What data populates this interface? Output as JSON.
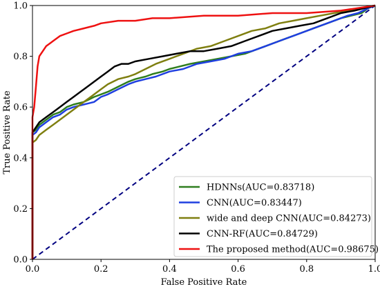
{
  "chart_data": {
    "type": "line",
    "title": "",
    "xlabel": "False Positive Rate",
    "ylabel": "True Positive Rate",
    "xlim": [
      0.0,
      1.0
    ],
    "ylim": [
      0.0,
      1.0
    ],
    "xticks": [
      "0.0",
      "0.2",
      "0.4",
      "0.6",
      "0.8",
      "1.0"
    ],
    "yticks": [
      "0.0",
      "0.2",
      "0.4",
      "0.6",
      "0.8",
      "1.0"
    ],
    "grid": false,
    "legend_position": "bottom-right",
    "diagonal": {
      "x": [
        0,
        1
      ],
      "y": [
        0,
        1
      ],
      "color": "#000080",
      "style": "dashed"
    },
    "series": [
      {
        "name": "HDNNs(AUC=0.83718)",
        "color": "#2e7d1e",
        "x": [
          0,
          0,
          0.01,
          0.02,
          0.04,
          0.06,
          0.08,
          0.1,
          0.12,
          0.15,
          0.18,
          0.2,
          0.22,
          0.25,
          0.28,
          0.3,
          0.33,
          0.35,
          0.38,
          0.4,
          0.43,
          0.46,
          0.5,
          0.54,
          0.58,
          0.62,
          0.66,
          0.7,
          0.74,
          0.78,
          0.82,
          0.86,
          0.9,
          0.93,
          0.96,
          0.98,
          1.0
        ],
        "y": [
          0,
          0.5,
          0.51,
          0.53,
          0.55,
          0.57,
          0.58,
          0.6,
          0.61,
          0.62,
          0.64,
          0.65,
          0.66,
          0.68,
          0.7,
          0.71,
          0.72,
          0.73,
          0.74,
          0.75,
          0.76,
          0.77,
          0.78,
          0.79,
          0.8,
          0.81,
          0.83,
          0.85,
          0.87,
          0.89,
          0.91,
          0.93,
          0.95,
          0.96,
          0.97,
          0.99,
          1.0
        ]
      },
      {
        "name": "CNN(AUC=0.83447)",
        "color": "#1f3fe0",
        "x": [
          0,
          0,
          0.01,
          0.02,
          0.04,
          0.06,
          0.08,
          0.1,
          0.12,
          0.15,
          0.18,
          0.2,
          0.22,
          0.25,
          0.28,
          0.3,
          0.33,
          0.36,
          0.4,
          0.44,
          0.48,
          0.52,
          0.56,
          0.6,
          0.64,
          0.68,
          0.72,
          0.76,
          0.8,
          0.84,
          0.88,
          0.92,
          0.95,
          0.98,
          1.0
        ],
        "y": [
          0,
          0.49,
          0.5,
          0.52,
          0.54,
          0.56,
          0.57,
          0.59,
          0.6,
          0.61,
          0.62,
          0.64,
          0.65,
          0.67,
          0.69,
          0.7,
          0.71,
          0.72,
          0.74,
          0.75,
          0.77,
          0.78,
          0.79,
          0.81,
          0.82,
          0.84,
          0.86,
          0.88,
          0.9,
          0.92,
          0.94,
          0.96,
          0.97,
          0.99,
          1.0
        ]
      },
      {
        "name": "wide and deep CNN(AUC=0.84273)",
        "color": "#7f7f10",
        "x": [
          0,
          0,
          0.01,
          0.02,
          0.04,
          0.06,
          0.08,
          0.1,
          0.12,
          0.15,
          0.18,
          0.2,
          0.22,
          0.25,
          0.28,
          0.3,
          0.33,
          0.36,
          0.4,
          0.44,
          0.48,
          0.52,
          0.56,
          0.6,
          0.64,
          0.68,
          0.72,
          0.76,
          0.8,
          0.84,
          0.88,
          0.92,
          0.96,
          1.0
        ],
        "y": [
          0,
          0.46,
          0.47,
          0.49,
          0.51,
          0.53,
          0.55,
          0.57,
          0.59,
          0.62,
          0.65,
          0.67,
          0.69,
          0.71,
          0.72,
          0.73,
          0.75,
          0.77,
          0.79,
          0.81,
          0.83,
          0.84,
          0.86,
          0.88,
          0.9,
          0.91,
          0.93,
          0.94,
          0.95,
          0.96,
          0.97,
          0.98,
          0.99,
          1.0
        ]
      },
      {
        "name": "CNN-RF(AUC=0.84729)",
        "color": "#000000",
        "x": [
          0,
          0,
          0.01,
          0.02,
          0.04,
          0.06,
          0.08,
          0.1,
          0.12,
          0.14,
          0.16,
          0.18,
          0.2,
          0.22,
          0.24,
          0.26,
          0.28,
          0.3,
          0.34,
          0.38,
          0.42,
          0.46,
          0.5,
          0.54,
          0.58,
          0.62,
          0.66,
          0.7,
          0.74,
          0.78,
          0.82,
          0.86,
          0.9,
          0.94,
          0.97,
          1.0
        ],
        "y": [
          0,
          0.5,
          0.52,
          0.54,
          0.56,
          0.58,
          0.6,
          0.62,
          0.64,
          0.66,
          0.68,
          0.7,
          0.72,
          0.74,
          0.76,
          0.77,
          0.77,
          0.78,
          0.79,
          0.8,
          0.81,
          0.82,
          0.82,
          0.83,
          0.84,
          0.86,
          0.88,
          0.9,
          0.91,
          0.92,
          0.93,
          0.95,
          0.97,
          0.98,
          0.99,
          1.0
        ]
      },
      {
        "name": "The proposed method(AUC=0.98675)",
        "color": "#ee1111",
        "x": [
          0,
          0,
          0.005,
          0.01,
          0.015,
          0.02,
          0.03,
          0.04,
          0.05,
          0.06,
          0.08,
          0.1,
          0.12,
          0.15,
          0.18,
          0.2,
          0.25,
          0.3,
          0.35,
          0.4,
          0.5,
          0.6,
          0.7,
          0.8,
          0.9,
          1.0
        ],
        "y": [
          0,
          0.56,
          0.6,
          0.68,
          0.76,
          0.8,
          0.82,
          0.84,
          0.85,
          0.86,
          0.88,
          0.89,
          0.9,
          0.91,
          0.92,
          0.93,
          0.94,
          0.94,
          0.95,
          0.95,
          0.96,
          0.96,
          0.97,
          0.97,
          0.98,
          1.0
        ]
      }
    ]
  }
}
